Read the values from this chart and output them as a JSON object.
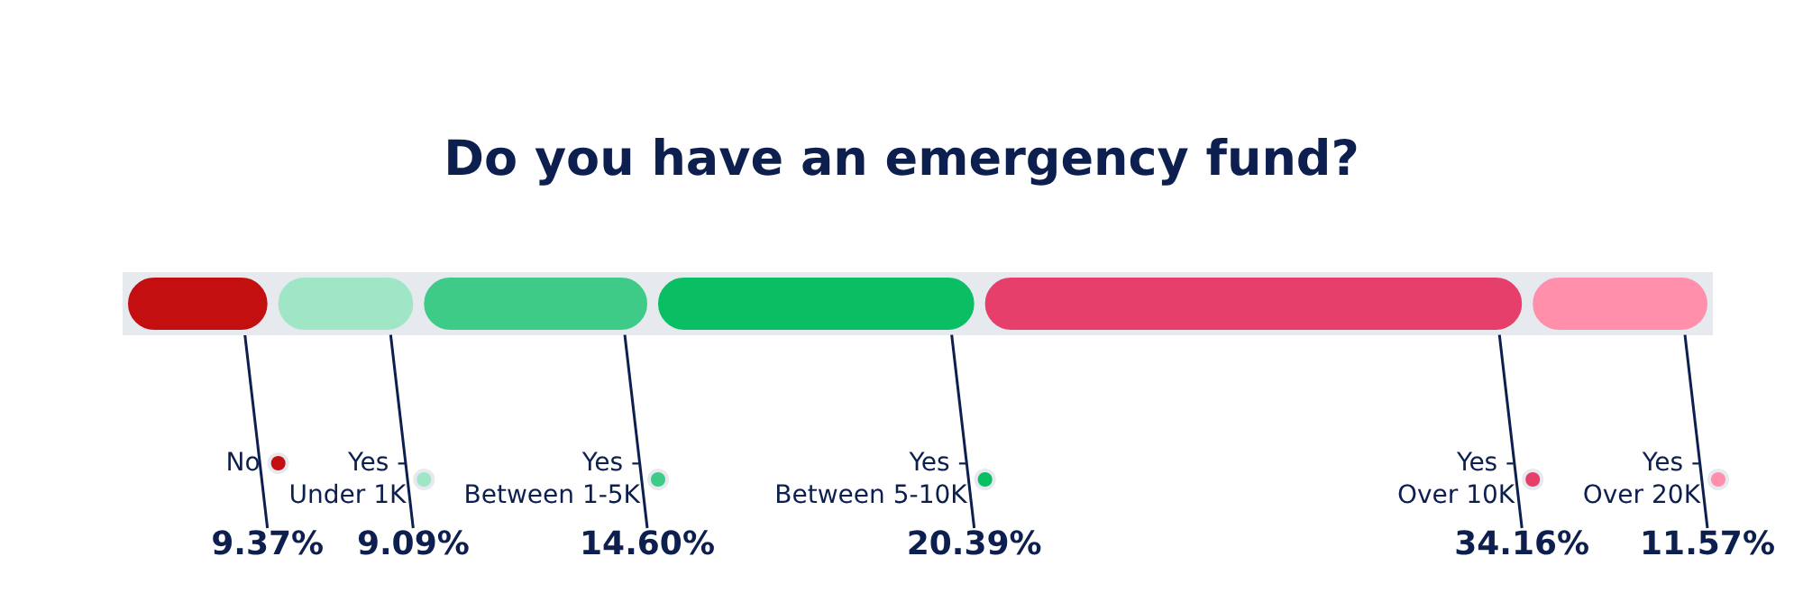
{
  "chart_data": {
    "type": "bar",
    "orientation": "horizontal",
    "stacked": true,
    "legend": "bottom",
    "title": "Do you have an emergency fund?",
    "categories": [
      null
    ],
    "series": [
      {
        "name": "No",
        "color": "#c30f10",
        "values": [
          9.37
        ],
        "value_labels": [
          "9.37%"
        ]
      },
      {
        "name": "Yes -\nUnder 1K",
        "color": "#9fe6c6",
        "values": [
          9.09
        ],
        "value_labels": [
          "9.09%"
        ]
      },
      {
        "name": "Yes -\nBetween 1-5K",
        "color": "#3ecb88",
        "values": [
          14.6
        ],
        "value_labels": [
          "14.60%"
        ]
      },
      {
        "name": "Yes -\nBetween 5-10K",
        "color": "#0abf63",
        "values": [
          20.39
        ],
        "value_labels": [
          "20.39%"
        ]
      },
      {
        "name": "Yes -\nOver 10K",
        "color": "#e63f6c",
        "values": [
          34.16
        ],
        "value_labels": [
          "34.16%"
        ]
      },
      {
        "name": "Yes -\nOver 20K",
        "color": "#ff8fab",
        "values": [
          11.57
        ],
        "value_labels": [
          "11.57%"
        ]
      }
    ]
  }
}
